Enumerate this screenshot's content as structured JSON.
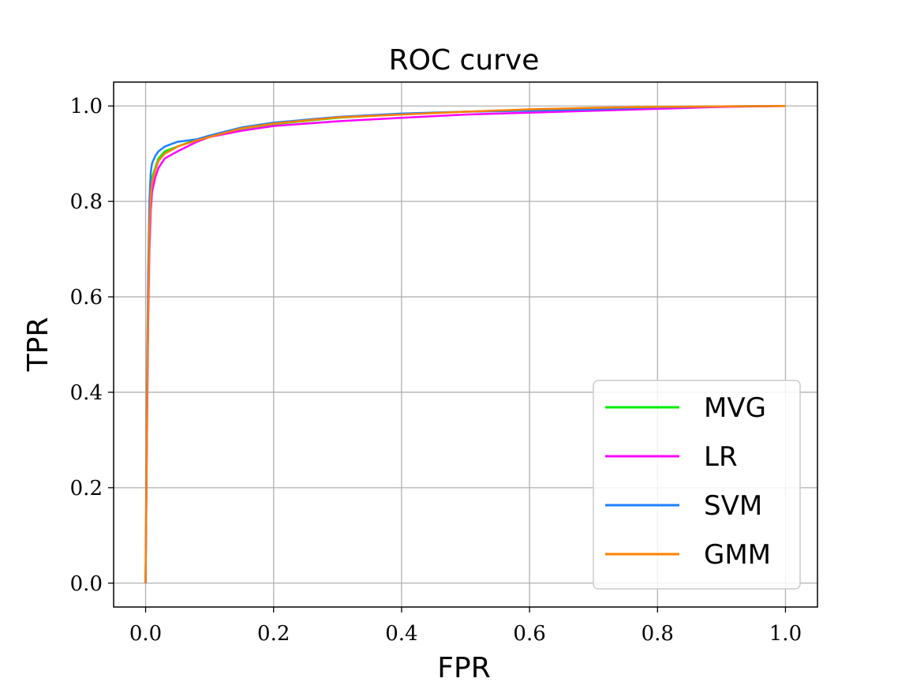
{
  "chart_data": {
    "type": "line",
    "title": "ROC curve",
    "xlabel": "FPR",
    "ylabel": "TPR",
    "xlim": [
      -0.05,
      1.05
    ],
    "ylim": [
      -0.05,
      1.05
    ],
    "xticks": [
      "0.0",
      "0.2",
      "0.4",
      "0.6",
      "0.8",
      "1.0"
    ],
    "yticks": [
      "0.0",
      "0.2",
      "0.4",
      "0.6",
      "0.8",
      "1.0"
    ],
    "grid": true,
    "legend_position": "lower-right",
    "series": [
      {
        "name": "MVG",
        "color": "#00ee00",
        "x": [
          0,
          0.002,
          0.004,
          0.006,
          0.008,
          0.01,
          0.015,
          0.02,
          0.03,
          0.05,
          0.08,
          0.1,
          0.15,
          0.2,
          0.3,
          0.4,
          0.5,
          0.6,
          0.7,
          0.8,
          0.9,
          1.0
        ],
        "y": [
          0,
          0.35,
          0.6,
          0.75,
          0.82,
          0.85,
          0.87,
          0.89,
          0.905,
          0.915,
          0.93,
          0.935,
          0.952,
          0.962,
          0.975,
          0.983,
          0.988,
          0.992,
          0.995,
          0.998,
          0.999,
          1.0
        ]
      },
      {
        "name": "LR",
        "color": "#ff00ff",
        "x": [
          0,
          0.002,
          0.004,
          0.006,
          0.008,
          0.01,
          0.015,
          0.02,
          0.03,
          0.05,
          0.08,
          0.1,
          0.15,
          0.2,
          0.3,
          0.4,
          0.5,
          0.6,
          0.7,
          0.8,
          0.9,
          1.0
        ],
        "y": [
          0,
          0.3,
          0.55,
          0.7,
          0.78,
          0.82,
          0.85,
          0.87,
          0.89,
          0.905,
          0.925,
          0.935,
          0.948,
          0.958,
          0.968,
          0.975,
          0.982,
          0.986,
          0.99,
          0.994,
          0.998,
          1.0
        ]
      },
      {
        "name": "SVM",
        "color": "#1f7fff",
        "x": [
          0,
          0.002,
          0.004,
          0.006,
          0.008,
          0.01,
          0.015,
          0.02,
          0.03,
          0.05,
          0.08,
          0.1,
          0.15,
          0.2,
          0.3,
          0.4,
          0.5,
          0.6,
          0.7,
          0.8,
          0.9,
          1.0
        ],
        "y": [
          0,
          0.4,
          0.65,
          0.8,
          0.86,
          0.88,
          0.895,
          0.905,
          0.915,
          0.925,
          0.93,
          0.938,
          0.955,
          0.965,
          0.977,
          0.984,
          0.988,
          0.99,
          0.993,
          0.997,
          0.999,
          1.0
        ]
      },
      {
        "name": "GMM",
        "color": "#ff8000",
        "x": [
          0,
          0.002,
          0.004,
          0.006,
          0.008,
          0.01,
          0.015,
          0.02,
          0.03,
          0.05,
          0.08,
          0.1,
          0.15,
          0.2,
          0.3,
          0.4,
          0.5,
          0.6,
          0.7,
          0.8,
          0.9,
          1.0
        ],
        "y": [
          0,
          0.33,
          0.58,
          0.74,
          0.81,
          0.84,
          0.865,
          0.885,
          0.9,
          0.915,
          0.928,
          0.935,
          0.953,
          0.963,
          0.976,
          0.982,
          0.988,
          0.993,
          0.996,
          0.998,
          0.999,
          1.0
        ]
      }
    ]
  }
}
